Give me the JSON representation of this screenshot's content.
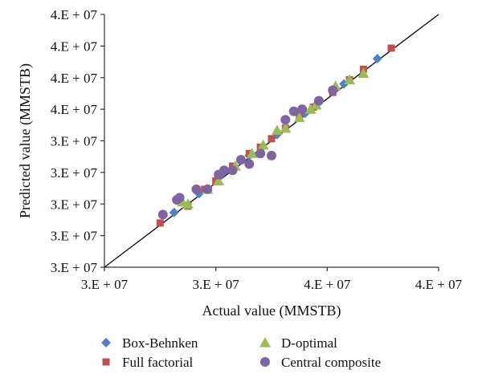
{
  "chart_data": {
    "type": "scatter",
    "title": "",
    "xlabel": "Actual value (MMSTB)",
    "ylabel": "Predicted value (MMSTB)",
    "xlim": [
      28000000,
      40000000
    ],
    "ylim": [
      28000000,
      40000000
    ],
    "x_tick_values": [
      28000000,
      32000000,
      36000000,
      40000000
    ],
    "x_tick_labels": [
      "3.E + 07",
      "3.E + 07",
      "4.E + 07",
      "4.E + 07"
    ],
    "y_tick_values": [
      28000000,
      29500000,
      31000000,
      32500000,
      34000000,
      35500000,
      37000000,
      38500000,
      40000000
    ],
    "y_tick_labels": [
      "3.E + 07",
      "3.E + 07",
      "3.E + 07",
      "3.E + 07",
      "3.E + 07",
      "4.E + 07",
      "4.E + 07",
      "4.E + 07",
      "4.E + 07"
    ],
    "reference_line": {
      "from": [
        28000000,
        28000000
      ],
      "to": [
        40000000,
        40000000
      ]
    },
    "grid": false,
    "legend_position": "bottom",
    "series": [
      {
        "name": "Box-Behnken",
        "marker": "diamond",
        "color": "#4F81BD",
        "points": [
          [
            30500000,
            30600000
          ],
          [
            31400000,
            31500000
          ],
          [
            32200000,
            32400000
          ],
          [
            33200000,
            33300000
          ],
          [
            34200000,
            34300000
          ],
          [
            35200000,
            35300000
          ],
          [
            35600000,
            35700000
          ],
          [
            36600000,
            36700000
          ],
          [
            37800000,
            37900000
          ]
        ]
      },
      {
        "name": "Full factorial",
        "marker": "square",
        "color": "#C0504D",
        "points": [
          [
            30000000,
            30100000
          ],
          [
            31000000,
            30900000
          ],
          [
            31600000,
            31700000
          ],
          [
            32000000,
            32100000
          ],
          [
            32600000,
            32800000
          ],
          [
            33200000,
            33400000
          ],
          [
            33600000,
            33700000
          ],
          [
            34000000,
            34100000
          ],
          [
            34500000,
            34600000
          ],
          [
            35000000,
            35200000
          ],
          [
            35500000,
            35600000
          ],
          [
            36200000,
            36300000
          ],
          [
            36800000,
            36900000
          ],
          [
            37300000,
            37400000
          ],
          [
            38300000,
            38400000
          ]
        ]
      },
      {
        "name": "D-optimal",
        "marker": "triangle",
        "color": "#9BBB59",
        "points": [
          [
            30800000,
            31100000
          ],
          [
            31000000,
            31000000
          ],
          [
            31700000,
            31700000
          ],
          [
            32100000,
            32100000
          ],
          [
            32700000,
            32800000
          ],
          [
            33300000,
            33400000
          ],
          [
            33700000,
            33800000
          ],
          [
            34200000,
            34500000
          ],
          [
            34500000,
            34600000
          ],
          [
            35000000,
            35100000
          ],
          [
            35400000,
            35500000
          ],
          [
            35600000,
            35700000
          ],
          [
            36300000,
            36600000
          ],
          [
            36800000,
            36900000
          ],
          [
            37300000,
            37200000
          ]
        ]
      },
      {
        "name": "Central composite",
        "marker": "circle",
        "color": "#8064A2",
        "points": [
          [
            30100000,
            30500000
          ],
          [
            30600000,
            31200000
          ],
          [
            30700000,
            31300000
          ],
          [
            31300000,
            31700000
          ],
          [
            31700000,
            31700000
          ],
          [
            32100000,
            32400000
          ],
          [
            32300000,
            32600000
          ],
          [
            32600000,
            32600000
          ],
          [
            32900000,
            33100000
          ],
          [
            33200000,
            32900000
          ],
          [
            33600000,
            33400000
          ],
          [
            34000000,
            33300000
          ],
          [
            34500000,
            35000000
          ],
          [
            34800000,
            35400000
          ],
          [
            35100000,
            35500000
          ],
          [
            35700000,
            35900000
          ],
          [
            36200000,
            36400000
          ]
        ]
      }
    ]
  }
}
